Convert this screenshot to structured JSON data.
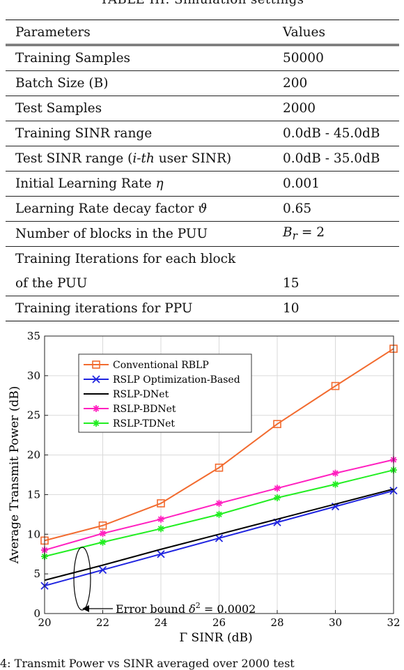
{
  "table": {
    "title": "TABLE III: Simulation settings",
    "headers": [
      "Parameters",
      "Values"
    ],
    "rows": [
      {
        "param": "Training Samples",
        "value": "50000"
      },
      {
        "param": "Batch Size (B)",
        "value": "200"
      },
      {
        "param": "Test Samples",
        "value": "2000"
      },
      {
        "param": "Training SINR range",
        "value": "0.0dB - 45.0dB"
      },
      {
        "param_pre": "Test SINR range (",
        "param_math": "i-th",
        "param_post": " user SINR)",
        "value": "0.0dB - 35.0dB"
      },
      {
        "param_pre": "Initial Learning Rate ",
        "param_math": "η",
        "value": "0.001"
      },
      {
        "param_pre": "Learning Rate decay factor ",
        "param_math": "ϑ",
        "value": "0.65"
      },
      {
        "param": "Number of blocks in the PUU",
        "value_math": "B",
        "value_sub": "r",
        "value_post": " = 2"
      },
      {
        "param_line1": "Training Iterations for each block",
        "param_line2": "of the PUU",
        "value": "15"
      },
      {
        "param": "Training iterations for PPU",
        "value": "10"
      }
    ]
  },
  "chart_data": {
    "type": "line",
    "xlabel": "Γ SINR (dB)",
    "ylabel": "Average Transmit Power (dB)",
    "xlim": [
      20,
      32
    ],
    "ylim": [
      0,
      35
    ],
    "xticks": [
      "20",
      "22",
      "24",
      "26",
      "28",
      "30",
      "32"
    ],
    "yticks": [
      "0",
      "5",
      "10",
      "15",
      "20",
      "25",
      "30",
      "35"
    ],
    "grid": true,
    "legend_position": "top-left",
    "x": [
      20,
      22,
      24,
      26,
      28,
      30,
      32
    ],
    "series": [
      {
        "name": "Conventional RBLP",
        "color": "#f26b2f",
        "marker": "square",
        "values": [
          9.2,
          11.1,
          13.9,
          18.4,
          23.9,
          28.7,
          33.4
        ]
      },
      {
        "name": "RSLP Optimization-Based",
        "color": "#1f24e0",
        "marker": "x",
        "values": [
          3.5,
          5.5,
          7.5,
          9.5,
          11.5,
          13.5,
          15.5
        ]
      },
      {
        "name": "RSLP-DNet",
        "color": "#000000",
        "marker": "none",
        "values": [
          4.2,
          6.1,
          8.1,
          10.0,
          11.9,
          13.8,
          15.7
        ]
      },
      {
        "name": "RSLP-BDNet",
        "color": "#ff1fbf",
        "marker": "star",
        "values": [
          8.0,
          10.1,
          11.9,
          13.9,
          15.8,
          17.7,
          19.4
        ]
      },
      {
        "name": "RSLP-TDNet",
        "color": "#22ee22",
        "marker": "star",
        "values": [
          7.2,
          9.0,
          10.7,
          12.5,
          14.6,
          16.3,
          18.1
        ]
      }
    ],
    "annotation": {
      "text_pre": "Error bound ",
      "text_math": "δ",
      "text_sup": "2",
      "text_post": " = 0.0002"
    }
  },
  "figure_caption": "4: Transmit Power vs SINR averaged over 2000 test"
}
